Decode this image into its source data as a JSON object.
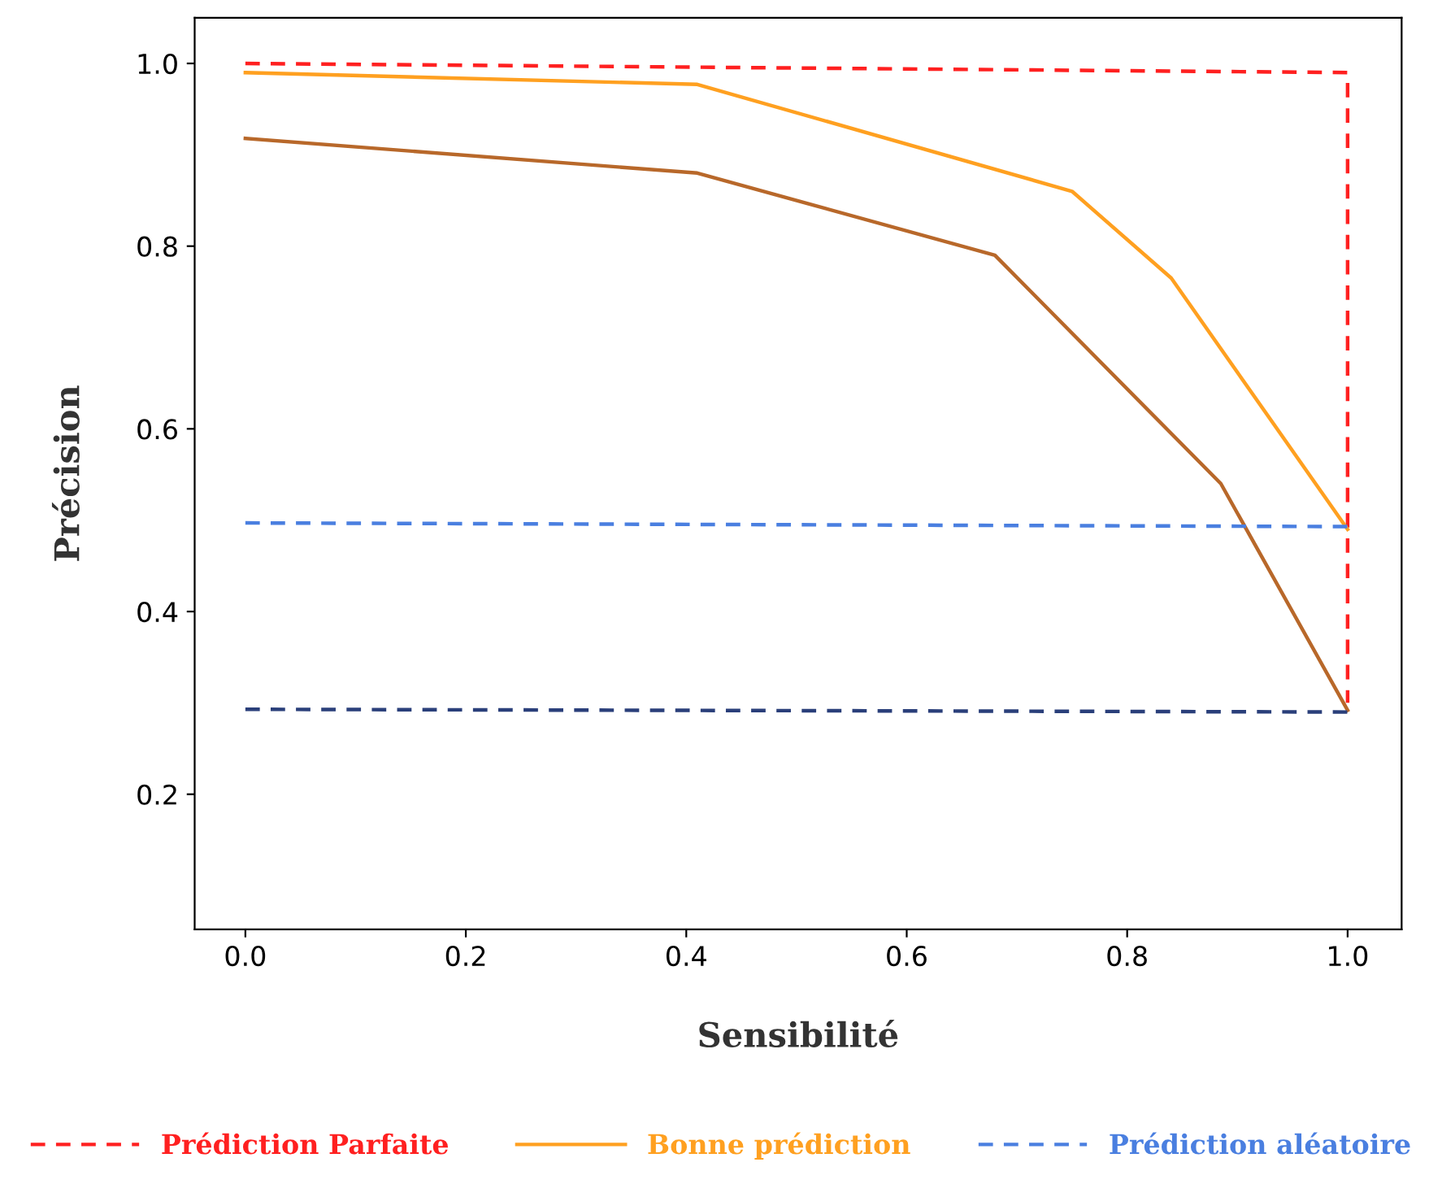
{
  "chart_data": {
    "type": "line",
    "xlabel": "Sensibilité",
    "ylabel": "Précision",
    "xlim": [
      -0.046,
      1.049
    ],
    "ylim": [
      0.052,
      1.05
    ],
    "xticks": [
      {
        "value": 0,
        "label": "0.0"
      },
      0.2,
      0.4,
      0.6,
      0.8,
      {
        "value": 1,
        "label": "1.0"
      }
    ],
    "yticks": [
      0.2,
      0.4,
      0.6,
      0.8,
      {
        "value": 1,
        "label": "1.0"
      }
    ],
    "grid": false,
    "legend": "bottom",
    "marker": "none",
    "series": [
      {
        "name": "Prédiction Parfaite",
        "color": "#ff2020",
        "line_style": "dashed",
        "x": [
          0,
          1,
          1
        ],
        "values": [
          1.0,
          0.99,
          0.3
        ]
      },
      {
        "name": "Bonne prédiction",
        "color": "#ffa020",
        "line_style": "solid",
        "x": [
          0,
          0.41,
          0.75,
          0.84,
          1.0
        ],
        "values": [
          0.99,
          0.977,
          0.86,
          0.765,
          0.49
        ]
      },
      {
        "color": "#b8682a",
        "line_style": "solid",
        "x": [
          0,
          0.41,
          0.68,
          0.885,
          1.0
        ],
        "values": [
          0.918,
          0.88,
          0.79,
          0.54,
          0.292
        ]
      },
      {
        "name": "Prédiction aléatoire",
        "color": "#4a7fe0",
        "line_style": "dashed",
        "x": [
          0,
          1
        ],
        "values": [
          0.497,
          0.493
        ]
      },
      {
        "color": "#2a3f7a",
        "line_style": "dashed",
        "x": [
          0,
          1
        ],
        "values": [
          0.293,
          0.29
        ]
      }
    ]
  }
}
